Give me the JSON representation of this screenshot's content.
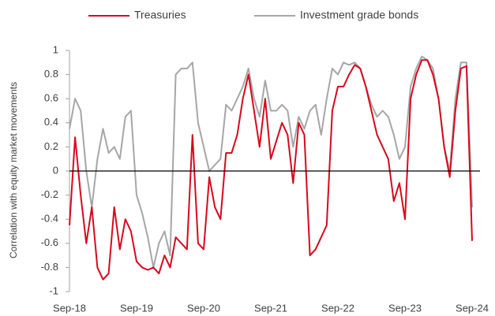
{
  "chart_data": {
    "type": "line",
    "ylabel": "Correlation with equity market movements",
    "categories": [
      "Sep-18",
      null,
      null,
      null,
      null,
      null,
      null,
      null,
      null,
      null,
      null,
      null,
      "Sep-19",
      null,
      null,
      null,
      null,
      null,
      null,
      null,
      null,
      null,
      null,
      null,
      "Sep-20",
      null,
      null,
      null,
      null,
      null,
      null,
      null,
      null,
      null,
      null,
      null,
      "Sep-21",
      null,
      null,
      null,
      null,
      null,
      null,
      null,
      null,
      null,
      null,
      null,
      "Sep-22",
      null,
      null,
      null,
      null,
      null,
      null,
      null,
      null,
      null,
      null,
      null,
      "Sep-23",
      null,
      null,
      null,
      null,
      null,
      null,
      null,
      null,
      null,
      null,
      null,
      "Sep-24"
    ],
    "series": [
      {
        "name": "Treasuries",
        "color": "#d7081e",
        "values": [
          -0.45,
          0.28,
          -0.2,
          -0.6,
          -0.3,
          -0.8,
          -0.9,
          -0.85,
          -0.3,
          -0.65,
          -0.4,
          -0.5,
          -0.75,
          -0.8,
          -0.82,
          -0.8,
          -0.85,
          -0.7,
          -0.8,
          -0.55,
          -0.6,
          -0.65,
          0.3,
          -0.6,
          -0.65,
          -0.05,
          -0.3,
          -0.4,
          0.15,
          0.15,
          0.3,
          0.6,
          0.8,
          0.5,
          0.2,
          0.6,
          0.1,
          0.25,
          0.4,
          0.3,
          -0.1,
          0.4,
          0.3,
          -0.7,
          -0.65,
          -0.55,
          -0.45,
          0.5,
          0.7,
          0.7,
          0.8,
          0.88,
          0.85,
          0.7,
          0.5,
          0.3,
          0.2,
          0.1,
          -0.25,
          -0.1,
          -0.4,
          0.6,
          0.8,
          0.92,
          0.92,
          0.8,
          0.6,
          0.2,
          -0.05,
          0.5,
          0.85,
          0.87,
          -0.58
        ]
      },
      {
        "name": "Investment grade bonds",
        "color": "#a6a6a6",
        "values": [
          0.35,
          0.6,
          0.5,
          0.0,
          -0.3,
          0.1,
          0.35,
          0.15,
          0.2,
          0.1,
          0.45,
          0.5,
          -0.2,
          -0.35,
          -0.55,
          -0.8,
          -0.6,
          -0.5,
          -0.7,
          0.8,
          0.85,
          0.85,
          0.9,
          0.4,
          0.2,
          0.0,
          0.05,
          0.1,
          0.55,
          0.5,
          0.6,
          0.7,
          0.85,
          0.6,
          0.45,
          0.75,
          0.5,
          0.5,
          0.55,
          0.5,
          0.2,
          0.45,
          0.35,
          0.5,
          0.55,
          0.3,
          0.6,
          0.85,
          0.8,
          0.9,
          0.88,
          0.9,
          0.85,
          0.7,
          0.55,
          0.45,
          0.5,
          0.45,
          0.3,
          0.1,
          0.2,
          0.7,
          0.85,
          0.95,
          0.92,
          0.85,
          0.6,
          0.2,
          0.0,
          0.6,
          0.9,
          0.9,
          -0.3
        ]
      }
    ],
    "ylim": [
      -1,
      1
    ],
    "yticks": [
      1,
      0.8,
      0.6,
      0.4,
      0.2,
      0,
      -0.2,
      -0.4,
      -0.6,
      -0.8,
      -1
    ],
    "grid": false,
    "legend": "top"
  }
}
